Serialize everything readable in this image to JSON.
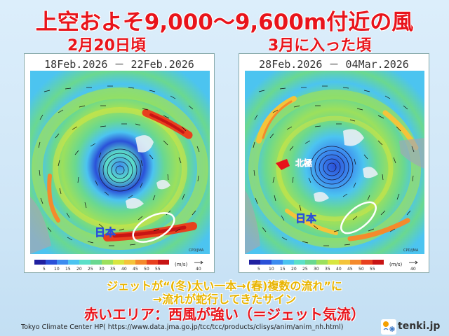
{
  "title": "上空およそ9,000～9,600m付近の風",
  "panels": [
    {
      "subtitle": "2月20日頃",
      "date_range": "18Feb.2026 － 22Feb.2026",
      "label_japan": "日本"
    },
    {
      "subtitle": "3月に入った頃",
      "date_range": "28Feb.2026 － 04Mar.2026",
      "label_japan": "日本",
      "label_kita": "北極"
    }
  ],
  "colorbar": {
    "ticks": [
      "5",
      "10",
      "15",
      "20",
      "25",
      "30",
      "35",
      "40",
      "45",
      "50",
      "55"
    ],
    "unit": "(m/s)",
    "arrow_label": "40",
    "colors": [
      "#2020a0",
      "#2a50d8",
      "#3c8cf0",
      "#4cc4f0",
      "#5ce0c8",
      "#6ad890",
      "#9ce05c",
      "#d8e640",
      "#f4c43a",
      "#f48a2c",
      "#e8401e",
      "#c81414"
    ]
  },
  "caption": {
    "line1": "ジェットが“(冬)太い一本→(春)複数の流れ”に",
    "line2": "→流れが蛇行してきたサイン",
    "line3": "赤いエリア：西風が強い（＝ジェット気流）"
  },
  "source": "Tokyo Climate Center HP( https://www.data.jma.go.jp/tcc/tcc/products/clisys/anim/anim_nh.html)",
  "logo": {
    "text": "tenki.jp",
    "icon": "snowflake-sun-icon"
  },
  "colors": {
    "accent_red": "#e8141b",
    "accent_yellow": "#e8b400"
  }
}
